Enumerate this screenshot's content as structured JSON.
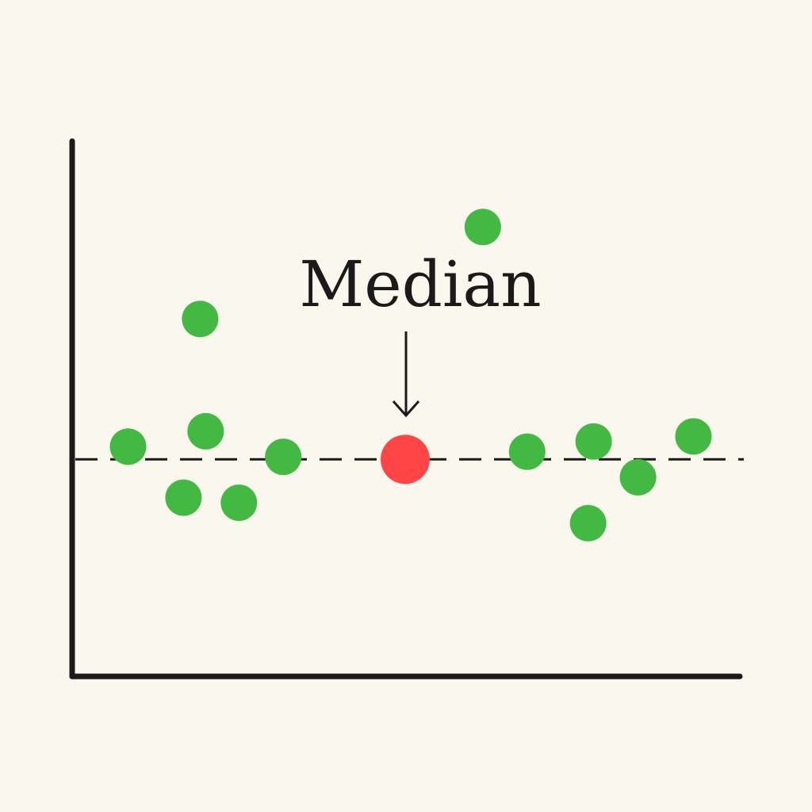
{
  "chart_data": {
    "type": "scatter",
    "title": "",
    "xlabel": "",
    "ylabel": "",
    "grid": false,
    "legend": "none",
    "xlim": [
      0,
      16
    ],
    "ylim": [
      0,
      12
    ],
    "reference_line": {
      "y": 4.25,
      "style": "dashed",
      "color": "#1a1a1a"
    },
    "annotation": {
      "text": "Median",
      "target_point": 7,
      "arrow": "down"
    },
    "points": [
      {
        "x": 1.0,
        "y": 4.5,
        "color": "#43b842"
      },
      {
        "x": 2.0,
        "y": 3.5,
        "color": "#43b842"
      },
      {
        "x": 2.3,
        "y": 7.0,
        "color": "#43b842"
      },
      {
        "x": 2.4,
        "y": 4.8,
        "color": "#43b842"
      },
      {
        "x": 3.0,
        "y": 3.4,
        "color": "#43b842"
      },
      {
        "x": 3.8,
        "y": 4.3,
        "color": "#43b842"
      },
      {
        "x": 7.4,
        "y": 8.8,
        "color": "#43b842"
      },
      {
        "x": 6.0,
        "y": 4.25,
        "color": "#ff4545",
        "highlight": true
      },
      {
        "x": 8.2,
        "y": 4.4,
        "color": "#43b842"
      },
      {
        "x": 9.4,
        "y": 4.6,
        "color": "#43b842"
      },
      {
        "x": 9.3,
        "y": 3.0,
        "color": "#43b842"
      },
      {
        "x": 10.2,
        "y": 3.9,
        "color": "#43b842"
      },
      {
        "x": 11.2,
        "y": 4.7,
        "color": "#43b842"
      }
    ]
  },
  "colors": {
    "background": "#f9f7ee",
    "axis": "#1a1a1a",
    "point": "#43b842",
    "median_point": "#ff4545"
  }
}
